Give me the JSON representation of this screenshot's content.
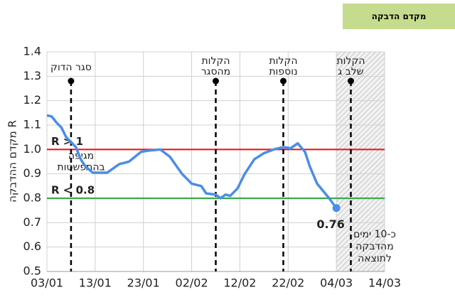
{
  "header": {
    "title": "מקדם הדבקה"
  },
  "chart_data": {
    "type": "line",
    "y_label": "R מקדם ההדבקה",
    "xlim": [
      0,
      70
    ],
    "xticks": [
      {
        "value": 0,
        "label": "03/01"
      },
      {
        "value": 10,
        "label": "13/01"
      },
      {
        "value": 20,
        "label": "23/01"
      },
      {
        "value": 30,
        "label": "02/02"
      },
      {
        "value": 40,
        "label": "12/02"
      },
      {
        "value": 50,
        "label": "22/02"
      },
      {
        "value": 60,
        "label": "04/03"
      },
      {
        "value": 70,
        "label": "14/03"
      }
    ],
    "ylim": [
      0.5,
      1.4
    ],
    "yticks": [
      0.5,
      0.6,
      0.7,
      0.8,
      0.9,
      {
        "value": 1,
        "label": "1.0"
      },
      1.1,
      1.2,
      1.3,
      1.4
    ],
    "grid": true,
    "series": [
      {
        "name": "R",
        "color": "#4a8ee6",
        "x": [
          0,
          1,
          2,
          3,
          4,
          5,
          6,
          7,
          8,
          9.5,
          12.5,
          15,
          17,
          19.5,
          21,
          23.5,
          25.5,
          28,
          30,
          32,
          33,
          35,
          36,
          37,
          38,
          39.5,
          41,
          43,
          45,
          47,
          49,
          50.5,
          52,
          53.5,
          54.5,
          56,
          58.5,
          60
        ],
        "values": [
          1.14,
          1.135,
          1.11,
          1.09,
          1.05,
          1.03,
          1.01,
          0.96,
          0.93,
          0.905,
          0.905,
          0.94,
          0.95,
          0.99,
          0.995,
          1.0,
          0.97,
          0.9,
          0.86,
          0.85,
          0.82,
          0.815,
          0.8,
          0.815,
          0.81,
          0.84,
          0.9,
          0.96,
          0.985,
          1.0,
          1.01,
          1.005,
          1.025,
          0.99,
          0.93,
          0.86,
          0.8,
          0.76
        ]
      }
    ],
    "end_point": {
      "x": 60,
      "y": 0.76
    },
    "hlines": [
      {
        "value": 1,
        "color": "#e81b1b",
        "label": "R > 1",
        "note": [
          "מגיפה",
          "בהתפשטות"
        ]
      },
      {
        "value": 0.8,
        "color": "#3aaa4a",
        "label": "R < 0.8"
      }
    ],
    "events": [
      {
        "x": 5,
        "label": [
          "סגר הדוק"
        ]
      },
      {
        "x": 35,
        "label": [
          "הקלות",
          "מהסגר"
        ]
      },
      {
        "x": 49,
        "label": [
          "הקלות",
          "נוספות"
        ]
      },
      {
        "x": 63,
        "label": [
          "הקלות",
          "שלב ג"
        ]
      }
    ],
    "shaded_xlim": [
      60,
      70
    ],
    "shade_note": [
      "כ-10 ימים",
      "מהדבקה",
      "לתוצאה"
    ]
  }
}
